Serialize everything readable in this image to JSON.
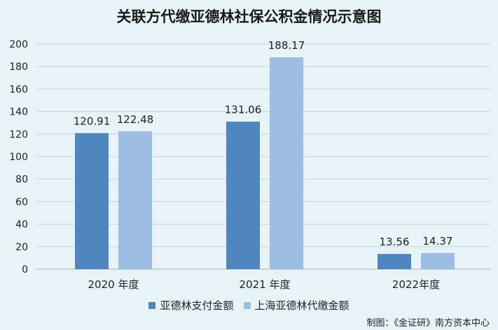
{
  "title": "关联方代缴亚德林社保公积金情况示意图",
  "credit": "制图：《金证研》南方资本中心",
  "chart_data": {
    "type": "bar",
    "categories": [
      "2020 年度",
      "2021 年度",
      "2022年度"
    ],
    "series": [
      {
        "name": "亚德林支付金额",
        "color": "#4f86bd",
        "values": [
          120.91,
          131.06,
          13.56
        ]
      },
      {
        "name": "上海亚德林代缴金额",
        "color": "#9dbde3",
        "values": [
          122.48,
          188.17,
          14.37
        ]
      }
    ],
    "ylim": [
      0,
      200
    ],
    "yticks": [
      0,
      20,
      40,
      60,
      80,
      100,
      120,
      140,
      160,
      180,
      200
    ],
    "grid": true,
    "legend_position": "bottom"
  }
}
